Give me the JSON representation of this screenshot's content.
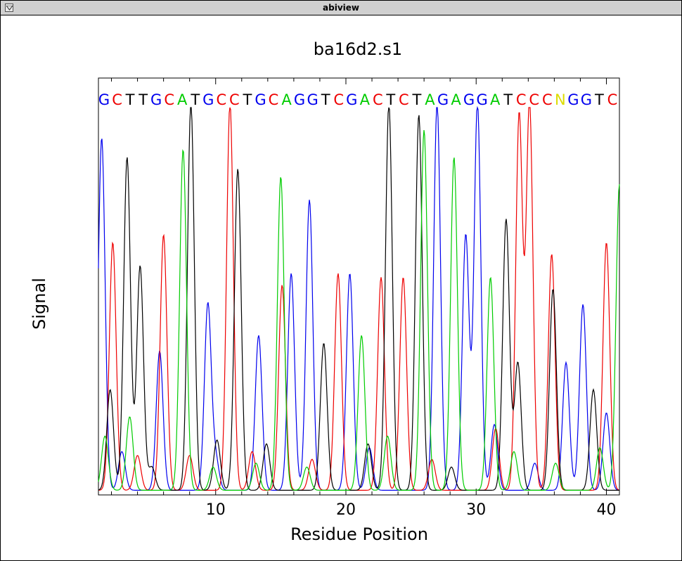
{
  "window": {
    "title": "abiview",
    "menu_icon": "triangle-down-icon"
  },
  "chart_data": {
    "type": "line",
    "title": "ba16d2.s1",
    "xlabel": "Residue Position",
    "ylabel": "Signal",
    "xlim": [
      1,
      41
    ],
    "ylim": [
      0,
      1
    ],
    "x_ticks": [
      10,
      20,
      30,
      40
    ],
    "grid": false,
    "sequence": "GCTTGCATGCCTGCAGGTCGACTCTAGAGGATCCCNGGTC",
    "base_colors": {
      "A": "#00cc00",
      "C": "#ee0000",
      "G": "#0000ee",
      "T": "#000000",
      "N": "#dddd00"
    },
    "series": [
      {
        "base": "G",
        "color": "#0000ee",
        "peaks": [
          [
            1.25,
            0.91
          ],
          [
            5.7,
            0.36
          ],
          [
            9.4,
            0.48
          ],
          [
            13.3,
            0.4
          ],
          [
            15.8,
            0.56
          ],
          [
            17.2,
            0.75
          ],
          [
            20.3,
            0.56
          ],
          [
            27.0,
            1.0
          ],
          [
            29.2,
            0.66
          ],
          [
            30.1,
            1.0
          ],
          [
            31.4,
            0.17
          ],
          [
            36.9,
            0.33
          ],
          [
            38.2,
            0.48
          ],
          [
            40.0,
            0.2
          ],
          [
            2.8,
            0.1
          ],
          [
            10.0,
            0.08
          ],
          [
            21.8,
            0.11
          ],
          [
            34.5,
            0.07
          ]
        ]
      },
      {
        "base": "C",
        "color": "#ee0000",
        "peaks": [
          [
            2.1,
            0.64
          ],
          [
            6.0,
            0.66
          ],
          [
            11.1,
            1.0
          ],
          [
            12.8,
            0.1
          ],
          [
            15.1,
            0.53
          ],
          [
            19.4,
            0.56
          ],
          [
            22.7,
            0.55
          ],
          [
            24.4,
            0.55
          ],
          [
            31.5,
            0.16
          ],
          [
            33.3,
            0.97
          ],
          [
            34.1,
            1.0
          ],
          [
            35.8,
            0.61
          ],
          [
            40.0,
            0.64
          ],
          [
            4.0,
            0.09
          ],
          [
            8.0,
            0.09
          ],
          [
            17.4,
            0.08
          ],
          [
            26.6,
            0.08
          ]
        ]
      },
      {
        "base": "T",
        "color": "#000000",
        "peaks": [
          [
            1.9,
            0.26
          ],
          [
            3.2,
            0.86
          ],
          [
            4.2,
            0.58
          ],
          [
            8.1,
            1.0
          ],
          [
            10.1,
            0.13
          ],
          [
            11.7,
            0.83
          ],
          [
            13.9,
            0.12
          ],
          [
            18.3,
            0.38
          ],
          [
            23.3,
            1.0
          ],
          [
            25.6,
            0.97
          ],
          [
            32.3,
            0.7
          ],
          [
            33.2,
            0.33
          ],
          [
            35.9,
            0.52
          ],
          [
            39.0,
            0.26
          ],
          [
            5.1,
            0.06
          ],
          [
            21.7,
            0.12
          ],
          [
            28.1,
            0.06
          ]
        ]
      },
      {
        "base": "A",
        "color": "#00cc00",
        "peaks": [
          [
            1.5,
            0.14
          ],
          [
            3.4,
            0.19
          ],
          [
            7.5,
            0.88
          ],
          [
            15.0,
            0.81
          ],
          [
            21.2,
            0.4
          ],
          [
            26.0,
            0.93
          ],
          [
            28.3,
            0.86
          ],
          [
            31.1,
            0.55
          ],
          [
            32.9,
            0.1
          ],
          [
            39.5,
            0.11
          ],
          [
            41.0,
            0.79
          ],
          [
            9.8,
            0.06
          ],
          [
            13.1,
            0.07
          ],
          [
            17.0,
            0.06
          ],
          [
            23.2,
            0.14
          ],
          [
            36.1,
            0.07
          ]
        ]
      }
    ]
  }
}
